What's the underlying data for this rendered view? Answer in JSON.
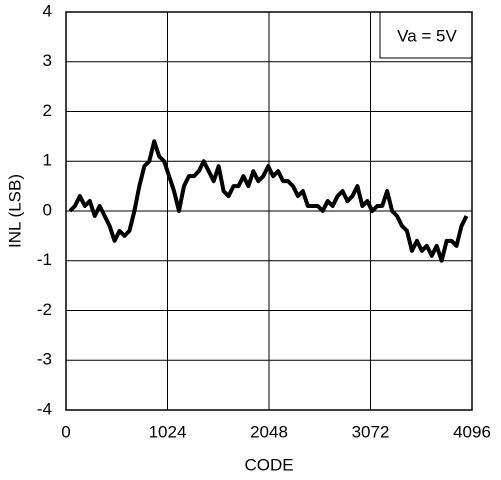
{
  "chart_data": {
    "type": "line",
    "xlabel": "CODE",
    "ylabel": "INL (LSB)",
    "annotation": "Va = 5V",
    "x": [
      40,
      90,
      140,
      190,
      240,
      290,
      340,
      390,
      440,
      490,
      540,
      590,
      640,
      690,
      740,
      790,
      840,
      890,
      940,
      990,
      1040,
      1090,
      1140,
      1190,
      1240,
      1290,
      1340,
      1390,
      1440,
      1490,
      1540,
      1590,
      1640,
      1690,
      1740,
      1790,
      1840,
      1890,
      1940,
      1990,
      2040,
      2090,
      2140,
      2190,
      2240,
      2290,
      2340,
      2390,
      2440,
      2490,
      2540,
      2590,
      2640,
      2690,
      2740,
      2790,
      2840,
      2890,
      2940,
      2990,
      3040,
      3090,
      3140,
      3190,
      3240,
      3290,
      3340,
      3390,
      3440,
      3490,
      3540,
      3590,
      3640,
      3690,
      3740,
      3790,
      3840,
      3890,
      3940,
      3990,
      4040
    ],
    "series": [
      {
        "name": "INL",
        "color": "#000000",
        "values": [
          0.0,
          0.1,
          0.3,
          0.1,
          0.2,
          -0.1,
          0.1,
          -0.1,
          -0.3,
          -0.6,
          -0.4,
          -0.5,
          -0.4,
          0.0,
          0.5,
          0.9,
          1.0,
          1.4,
          1.1,
          1.0,
          0.7,
          0.4,
          0.0,
          0.5,
          0.7,
          0.7,
          0.8,
          1.0,
          0.8,
          0.6,
          0.9,
          0.4,
          0.3,
          0.5,
          0.5,
          0.7,
          0.5,
          0.8,
          0.6,
          0.7,
          0.9,
          0.7,
          0.8,
          0.6,
          0.6,
          0.5,
          0.3,
          0.4,
          0.1,
          0.1,
          0.1,
          0.0,
          0.2,
          0.1,
          0.3,
          0.4,
          0.2,
          0.3,
          0.5,
          0.1,
          0.2,
          0.0,
          0.1,
          0.1,
          0.4,
          0.0,
          -0.1,
          -0.3,
          -0.4,
          -0.8,
          -0.6,
          -0.8,
          -0.7,
          -0.9,
          -0.7,
          -1.0,
          -0.6,
          -0.6,
          -0.7,
          -0.3,
          -0.1
        ]
      }
    ],
    "xlim": [
      0,
      4096
    ],
    "xticks": [
      0,
      1024,
      2048,
      3072,
      4096
    ],
    "ylim": [
      -4,
      4
    ],
    "yticks": [
      -4,
      -3,
      -2,
      -1,
      0,
      1,
      2,
      3,
      4
    ],
    "grid": true
  }
}
